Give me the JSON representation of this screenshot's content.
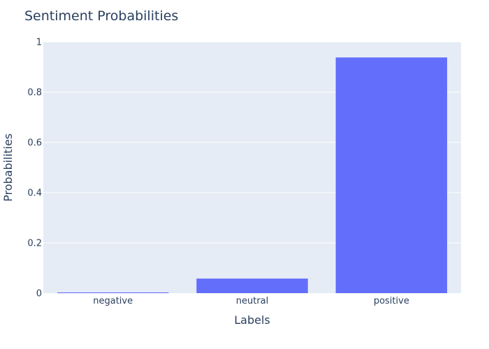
{
  "chart_data": {
    "type": "bar",
    "title": "Sentiment Probabilities",
    "xlabel": "Labels",
    "ylabel": "Probabilities",
    "categories": [
      "negative",
      "neutral",
      "positive"
    ],
    "values": [
      0.003,
      0.058,
      0.938
    ],
    "ylim": [
      0,
      1
    ],
    "yticks": [
      0,
      0.2,
      0.4,
      0.6,
      0.8,
      1
    ],
    "ytick_labels": [
      "0",
      "0.2",
      "0.4",
      "0.6",
      "0.8",
      "1"
    ],
    "grid": true,
    "colors": {
      "bar": "#636efa",
      "plot_background": "#e5ecf6",
      "gridline": "#ffffff",
      "text": "#2a3f5f"
    }
  }
}
